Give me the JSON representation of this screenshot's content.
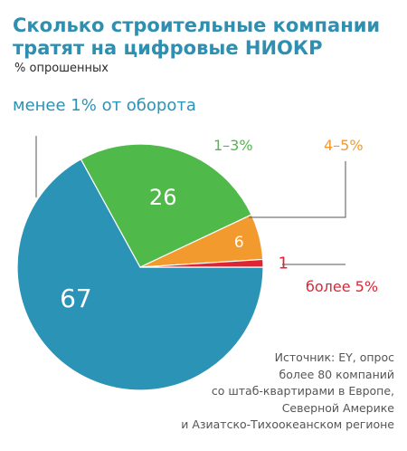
{
  "header": {
    "title_line1": "Сколько строительные компании",
    "title_line2": "тратят на цифровые НИОКР",
    "subtitle": "% опрошенных"
  },
  "source": {
    "lines": [
      "Источник: EY, опрос",
      "более 80 компаний",
      "со штаб-квартирами в Европе,",
      "Северной Америке",
      "и Азиатско-Тихоокеанском регионе"
    ]
  },
  "chart_data": {
    "type": "pie",
    "title": "Сколько строительные компании тратят на цифровые НИОКР",
    "subtitle": "% опрошенных",
    "slices": [
      {
        "label": "менее 1% от оборота",
        "value": 67,
        "color": "#2a93b6"
      },
      {
        "label": "1–3%",
        "value": 26,
        "color": "#4fb94a"
      },
      {
        "label": "4–5%",
        "value": 6,
        "color": "#f39a2e"
      },
      {
        "label": "более 5%",
        "value": 1,
        "color": "#e02433"
      }
    ],
    "legend_placement": "callouts around pie"
  }
}
